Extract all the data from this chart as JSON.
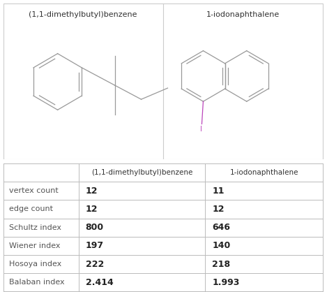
{
  "title1": "(1,1-dimethylbutyl)benzene",
  "title2": "1-iodonaphthalene",
  "table_headers": [
    "",
    "(1,1-dimethylbutyl)benzene",
    "1-iodonaphthalene"
  ],
  "rows": [
    [
      "vertex count",
      "12",
      "11"
    ],
    [
      "edge count",
      "12",
      "12"
    ],
    [
      "Schultz index",
      "800",
      "646"
    ],
    [
      "Wiener index",
      "197",
      "140"
    ],
    [
      "Hosoya index",
      "222",
      "218"
    ],
    [
      "Balaban index",
      "2.414",
      "1.993"
    ]
  ],
  "iodine_color": "#bb44bb",
  "line_color": "#999999",
  "bg_color": "#ffffff",
  "table_line_color": "#bbbbbb",
  "border_color": "#cccccc"
}
